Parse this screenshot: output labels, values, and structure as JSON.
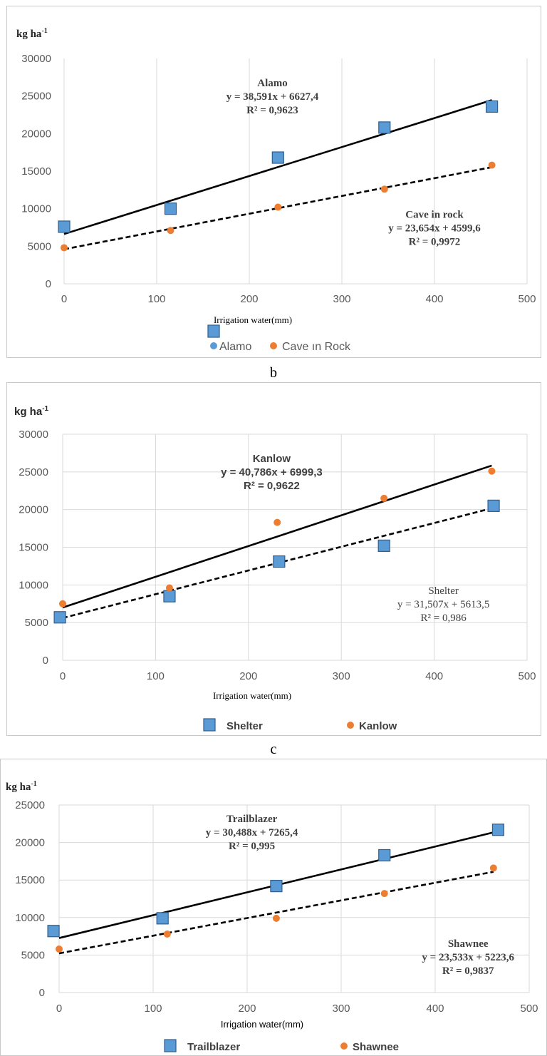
{
  "figure_labels": [
    "b",
    "c"
  ],
  "chart_data": [
    {
      "type": "scatter",
      "ylabel": "kg ha",
      "ylabel_sup": "-1",
      "xlabel": "Irrigation water(mm)",
      "xlim": [
        0,
        500
      ],
      "ylim": [
        0,
        30000
      ],
      "xticks": [
        "0",
        "100",
        "200",
        "300",
        "400",
        "500"
      ],
      "yticks": [
        "0",
        "5000",
        "10000",
        "15000",
        "20000",
        "25000",
        "30000"
      ],
      "grid": "vertical",
      "legend_position": "bottom",
      "series": [
        {
          "name": "Alamo",
          "marker": "square",
          "color": "#5b9bd5",
          "x": [
            0,
            115,
            231,
            346,
            462
          ],
          "y": [
            7600,
            10000,
            16800,
            20800,
            23600
          ]
        },
        {
          "name": "Cave in Rock",
          "marker": "circle",
          "color": "#ed7d31",
          "x": [
            0,
            115,
            231,
            346,
            462
          ],
          "y": [
            4800,
            7100,
            10200,
            12600,
            15800
          ]
        }
      ],
      "trendlines": [
        {
          "name": "Alamo",
          "style": "solid",
          "slope": 38.591,
          "intercept": 6627.4,
          "x_range": [
            0,
            462
          ]
        },
        {
          "name": "Cave in rock",
          "style": "dashed",
          "slope": 23.654,
          "intercept": 4599.6,
          "x_range": [
            0,
            462
          ]
        }
      ],
      "annotations": [
        {
          "lines": [
            "Alamo",
            "y = 38,591x + 6627,4",
            "R² = 0,9623"
          ],
          "at": [
            225,
            26300
          ]
        },
        {
          "lines": [
            "Cave in rock",
            "y = 23,654x + 4599,6",
            "R² = 0,9972"
          ],
          "at": [
            400,
            8800
          ]
        }
      ]
    },
    {
      "type": "scatter",
      "ylabel": "kg ha",
      "ylabel_sup": "-1",
      "xlabel": "Irrigation water(mm)",
      "xlim": [
        0,
        500
      ],
      "ylim": [
        0,
        30000
      ],
      "xticks": [
        "0",
        "100",
        "200",
        "300",
        "400",
        "500"
      ],
      "yticks": [
        "0",
        "5000",
        "10000",
        "15000",
        "20000",
        "25000",
        "30000"
      ],
      "grid": "both",
      "legend_position": "bottom",
      "series": [
        {
          "name": "Shelter",
          "marker": "square",
          "color": "#5b9bd5",
          "x": [
            -3,
            115,
            233,
            346,
            464
          ],
          "y": [
            5700,
            8500,
            13100,
            15200,
            20500
          ]
        },
        {
          "name": "Kanlow",
          "marker": "circle",
          "color": "#ed7d31",
          "x": [
            0,
            115,
            231,
            346,
            462
          ],
          "y": [
            7500,
            9600,
            18300,
            21500,
            25100
          ]
        }
      ],
      "trendlines": [
        {
          "name": "Kanlow",
          "style": "solid",
          "slope": 40.786,
          "intercept": 6999.3,
          "x_range": [
            0,
            462
          ]
        },
        {
          "name": "Shelter",
          "style": "dashed",
          "slope": 31.507,
          "intercept": 5613.5,
          "x_range": [
            0,
            462
          ]
        }
      ],
      "annotations": [
        {
          "lines": [
            "Kanlow",
            "y = 40,786x + 6999,3",
            "R² = 0,9622"
          ],
          "at": [
            225,
            26300
          ]
        },
        {
          "lines": [
            "Shelter",
            "y = 31,507x  + 5613,5",
            "R² = 0,986"
          ],
          "at": [
            410,
            8800
          ]
        }
      ]
    },
    {
      "type": "scatter",
      "ylabel": "kg ha",
      "ylabel_sup": "-1",
      "xlabel": "Irrigation water(mm)",
      "xlim": [
        0,
        500
      ],
      "ylim": [
        0,
        25000
      ],
      "xticks": [
        "0",
        "100",
        "200",
        "300",
        "400",
        "500"
      ],
      "yticks": [
        "0",
        "5000",
        "10000",
        "15000",
        "20000",
        "25000"
      ],
      "grid": "both",
      "legend_position": "bottom",
      "series": [
        {
          "name": "Trailblazer",
          "marker": "square",
          "color": "#5b9bd5",
          "x": [
            -6,
            110,
            231,
            346,
            467
          ],
          "y": [
            8200,
            9900,
            14200,
            18300,
            21700
          ]
        },
        {
          "name": "Shawnee",
          "marker": "circle",
          "color": "#ed7d31",
          "x": [
            0,
            115,
            231,
            346,
            462
          ],
          "y": [
            5800,
            7800,
            9900,
            13200,
            16600
          ]
        }
      ],
      "trendlines": [
        {
          "name": "Trailblazer",
          "style": "solid",
          "slope": 30.488,
          "intercept": 7265.4,
          "x_range": [
            0,
            462
          ]
        },
        {
          "name": "Shawnee",
          "style": "dashed",
          "slope": 23.533,
          "intercept": 5223.6,
          "x_range": [
            0,
            462
          ]
        }
      ],
      "annotations": [
        {
          "lines": [
            "Trailblazer",
            "y = 30,488x + 7265,4",
            "R² = 0,995"
          ],
          "at": [
            205,
            22700
          ]
        },
        {
          "lines": [
            "Shawnee",
            "y = 23,533x + 5223,6",
            "R² = 0,9837"
          ],
          "at": [
            435,
            6100
          ]
        }
      ]
    }
  ]
}
